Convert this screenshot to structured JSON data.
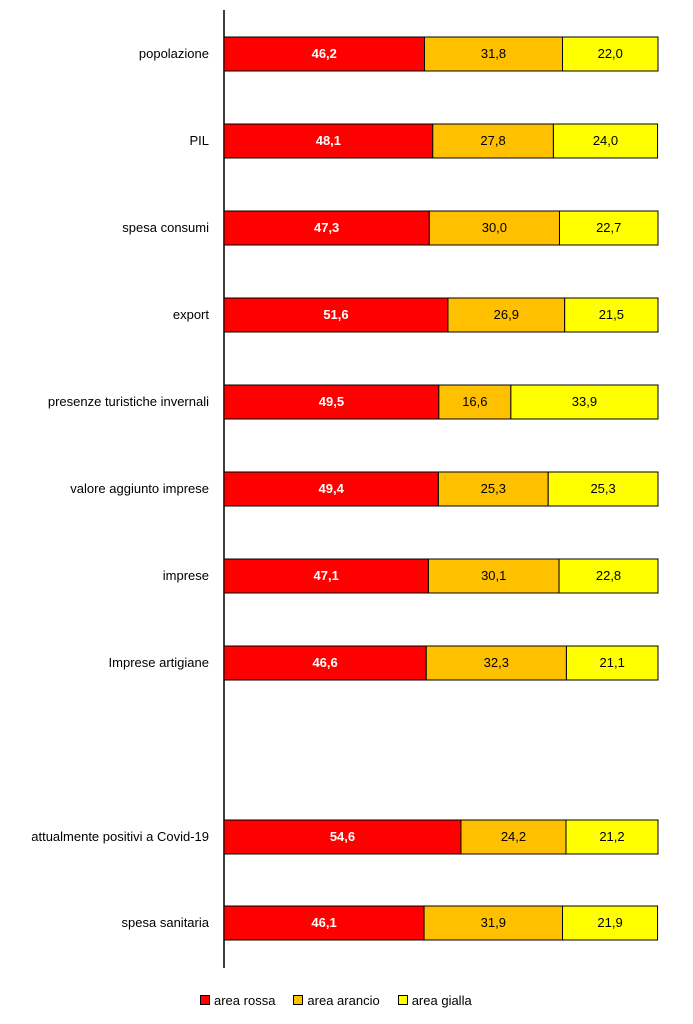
{
  "chart_data": {
    "type": "bar",
    "orientation": "horizontal",
    "stacked": "100%",
    "categories": [
      "popolazione",
      "PIL",
      "spesa consumi",
      "export",
      "presenze turistiche invernali",
      "valore aggiunto imprese",
      "imprese",
      "Imprese artigiane",
      "attualmente positivi a Covid-19",
      "spesa sanitaria"
    ],
    "series": [
      {
        "name": "area rossa",
        "color": "#ff0000",
        "values": [
          46.2,
          48.1,
          47.3,
          51.6,
          49.5,
          49.4,
          47.1,
          46.6,
          54.6,
          46.1
        ],
        "labels": [
          "46,2",
          "48,1",
          "47,3",
          "51,6",
          "49,5",
          "49,4",
          "47,1",
          "46,6",
          "54,6",
          "46,1"
        ]
      },
      {
        "name": "area arancio",
        "color": "#ffc000",
        "values": [
          31.8,
          27.8,
          30.0,
          26.9,
          16.6,
          25.3,
          30.1,
          32.3,
          24.2,
          31.9
        ],
        "labels": [
          "31,8",
          "27,8",
          "30,0",
          "26,9",
          "16,6",
          "25,3",
          "30,1",
          "32,3",
          "24,2",
          "31,9"
        ]
      },
      {
        "name": "area gialla",
        "color": "#ffff00",
        "values": [
          22.0,
          24.0,
          22.7,
          21.5,
          33.9,
          25.3,
          22.8,
          21.1,
          21.2,
          21.9
        ],
        "labels": [
          "22,0",
          "24,0",
          "22,7",
          "21,5",
          "33,9",
          "25,3",
          "22,8",
          "21,1",
          "21,2",
          "21,9"
        ]
      }
    ],
    "xlim": [
      0,
      100
    ],
    "legend_position": "bottom",
    "grid": false
  }
}
